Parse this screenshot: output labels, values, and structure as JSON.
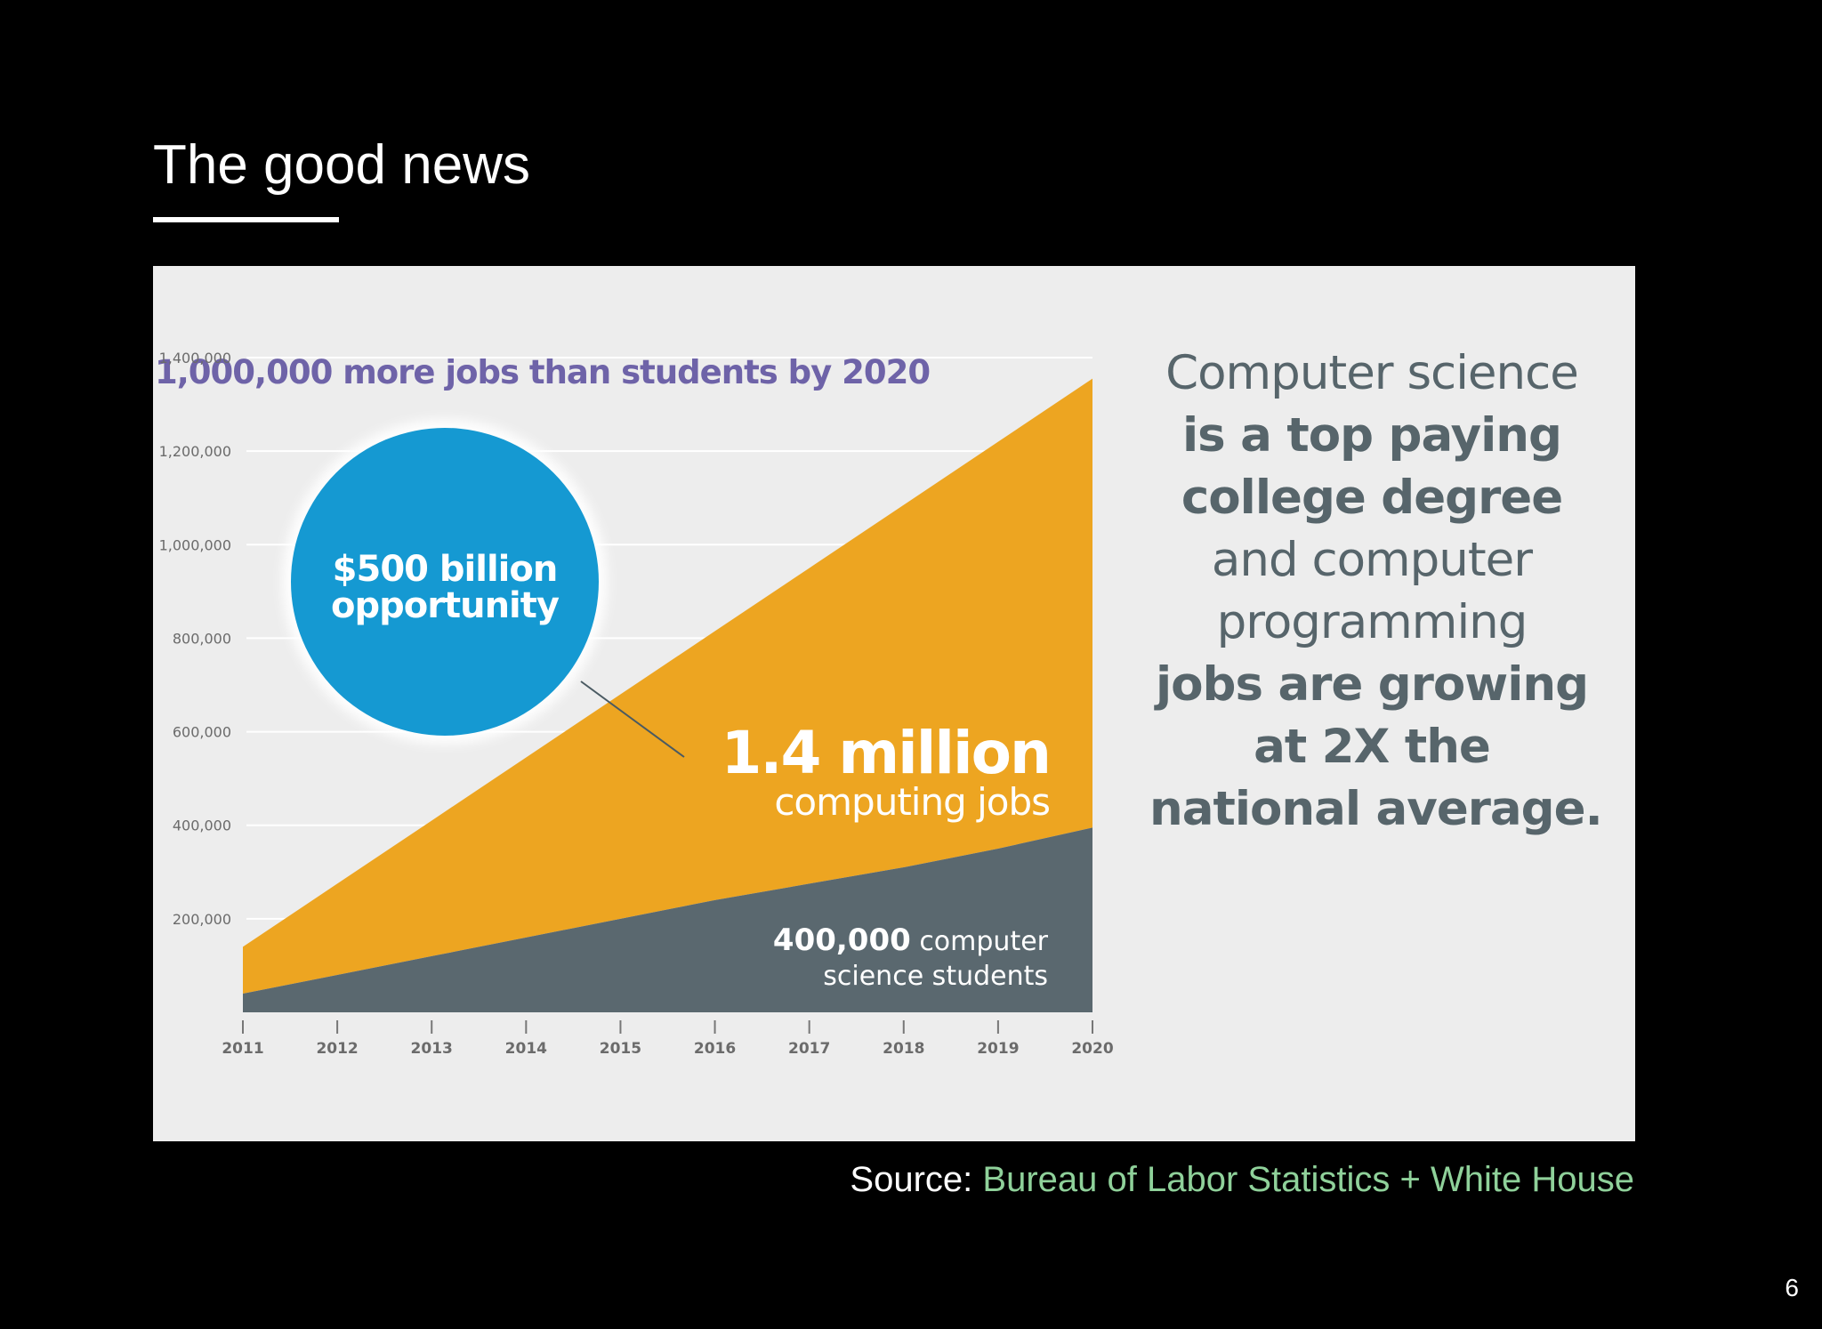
{
  "slide": {
    "title": "The good news",
    "page_number": "6"
  },
  "source": {
    "label": "Source:",
    "link_text": "Bureau of Labor Statistics + White House"
  },
  "side_statement": [
    {
      "text": "Computer science",
      "bold": false
    },
    {
      "text": "is a top paying",
      "bold": true
    },
    {
      "text": "college degree",
      "bold": true
    },
    {
      "text": "and computer",
      "bold": false
    },
    {
      "text": "programming",
      "bold": false
    },
    {
      "text": "jobs are growing",
      "bold": true
    },
    {
      "text": "at 2X the",
      "bold": true
    },
    {
      "text": "national average.",
      "bold": true
    }
  ],
  "chart_data": {
    "type": "area",
    "title": "1,000,000 more jobs than students by 2020",
    "x": [
      2011,
      2012,
      2013,
      2014,
      2015,
      2016,
      2017,
      2018,
      2019,
      2020
    ],
    "xticklabels": [
      "2011",
      "2012",
      "2013",
      "2014",
      "2015",
      "2016",
      "2017",
      "2018",
      "2019",
      "2020"
    ],
    "yticks": [
      200000,
      400000,
      600000,
      800000,
      1000000,
      1200000,
      1400000
    ],
    "yticklabels": [
      "200,000",
      "400,000",
      "600,000",
      "800,000",
      "1,000,000",
      "1,200,000",
      "1,400,000"
    ],
    "ylim": [
      0,
      1400000
    ],
    "grid": true,
    "series": [
      {
        "values": [
          140000,
          275000,
          410000,
          545000,
          680000,
          815000,
          950000,
          1085000,
          1220000,
          1355000
        ],
        "color": "#eda521"
      },
      {
        "values": [
          40000,
          80000,
          120000,
          160000,
          200000,
          240000,
          275000,
          310000,
          350000,
          395000
        ],
        "color": "#5a686f"
      }
    ],
    "annotations": {
      "jobs_value": "1.4 million",
      "jobs_label": "computing jobs",
      "students_value": "400,000",
      "students_label_1": "computer",
      "students_label_2": "science students",
      "circle_line1": "$500 billion",
      "circle_line2": "opportunity",
      "circle_color": "#1599d2",
      "title_color": "#6e63a8"
    }
  }
}
